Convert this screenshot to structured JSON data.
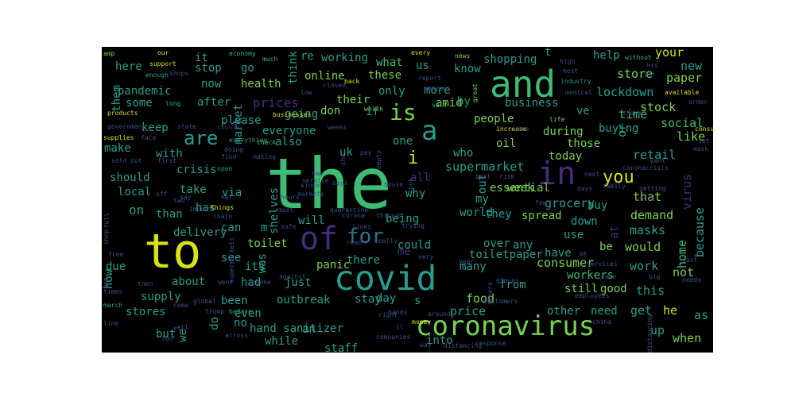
{
  "palette": {
    "panel_bg": "#000000",
    "page_bg": "#ffffff",
    "yellow": "#d8e219",
    "green": "#3ebc74",
    "lime": "#7ad151",
    "teal": "#2a9d8f",
    "blue": "#2c728e",
    "dark_purple": "#440154",
    "purple": "#472d7b",
    "navy": "#3b528b"
  },
  "words": [
    "the",
    "to",
    "and",
    "covid",
    "coronavirus",
    "of",
    "in",
    "for",
    "is",
    "a",
    "are",
    "you",
    "i",
    "on",
    "stock",
    "store",
    "shopping",
    "lockdown",
    "food",
    "price",
    "prices",
    "supermarket",
    "grocery",
    "toilet",
    "panic",
    "people",
    "consumer",
    "health",
    "pandemic",
    "online",
    "working",
    "these",
    "what",
    "us",
    "know",
    "help",
    "your",
    "new",
    "paper",
    "social",
    "business",
    "time",
    "like",
    "retail",
    "that",
    "virus",
    "demand",
    "because",
    "home",
    "masks",
    "would",
    "work",
    "not",
    "when",
    "up",
    "as",
    "get",
    "he",
    "this",
    "good",
    "still",
    "workers",
    "need",
    "other",
    "have",
    "be",
    "use",
    "down",
    "buy",
    "at",
    "spread",
    "they",
    "world",
    "my",
    "could",
    "over",
    "any",
    "me",
    "being",
    "will",
    "out",
    "why",
    "all",
    "essential",
    "week",
    "during",
    "those",
    "oil",
    "today",
    "buying",
    "one",
    "who",
    "uk",
    "if",
    "don",
    "their",
    "only",
    "more",
    "amid",
    "by",
    "it",
    "stop",
    "go",
    "re",
    "think",
    "here",
    "now",
    "some",
    "keep",
    "make",
    "should",
    "local",
    "with",
    "crisis",
    "take",
    "has",
    "than",
    "delivery",
    "can",
    "see",
    "due",
    "how",
    "about",
    "supply",
    "stores",
    "but",
    "we",
    "no",
    "do",
    "been",
    "even",
    "hand sanitizer",
    "while",
    "staff",
    "an",
    "outbreak",
    "stay",
    "day",
    "just",
    "had",
    "its",
    "was",
    "there",
    "many",
    "from",
    "toiletpaper",
    "m",
    "via",
    "shelves",
    "also",
    "everyone",
    "going",
    "please",
    "after",
    "market",
    "them",
    "into",
    "s",
    "t",
    "ve",
    "or",
    "amp",
    "our",
    "economy",
    "much",
    "every",
    "news",
    "support",
    "enough",
    "shops",
    "high",
    "most",
    "without",
    "his",
    "gas",
    "industry",
    "report",
    "amazon",
    "low",
    "closed",
    "back",
    "self",
    "great",
    "medical",
    "available",
    "order",
    "products",
    "long",
    "businesses",
    "which",
    "life",
    "thank",
    "government",
    "state",
    "country",
    "weeks",
    "increase",
    "were",
    "supplies",
    "face",
    "everything",
    "doing",
    "check",
    "consumers",
    "let",
    "mask",
    "sold out",
    "first",
    "find",
    "making",
    "she",
    "pay",
    "empty",
    "next",
    "open",
    "days",
    "coronacrisis",
    "want",
    "service",
    "house",
    "look",
    "best",
    "risk",
    "since",
    "may",
    "says",
    "family",
    "getting",
    "off",
    "say",
    "her",
    "hours",
    "markets",
    "few",
    "where",
    "two",
    "impact",
    "things",
    "chain",
    "must",
    "quarantine",
    "corona",
    "through",
    "full",
    "shop",
    "safe",
    "lines",
    "trying",
    "free",
    "supermarkets",
    "read",
    "really",
    "very",
    "year",
    "am",
    "services",
    "last",
    "got",
    "then",
    "went",
    "anyone",
    "against",
    "care",
    "big",
    "times",
    "needs",
    "gloves",
    "others",
    "march",
    "global",
    "customers",
    "employees",
    "come",
    "before",
    "line",
    "trump",
    "hands",
    "around",
    "right",
    "money",
    "china",
    "socialdistancing",
    "ll",
    "well",
    "too",
    "across",
    "companies",
    "way",
    "distancing",
    "response"
  ]
}
